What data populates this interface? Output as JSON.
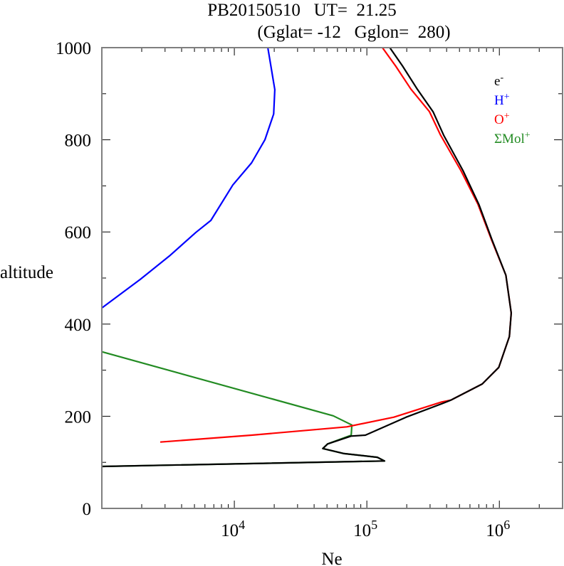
{
  "chart_data": {
    "type": "line",
    "title_line1": "PB20150510   UT=  21.25",
    "title_line2": "(Gglat= -12   Gglon=  280)",
    "xlabel": "Ne",
    "ylabel": "altitude",
    "xscale": "log",
    "xlim": [
      1000,
      3000000
    ],
    "ylim": [
      0,
      1000
    ],
    "grid": false,
    "legend_placement": "top-right",
    "x_tick_labels": [
      {
        "value": 10000,
        "base": "10",
        "exp": "4"
      },
      {
        "value": 100000,
        "base": "10",
        "exp": "5"
      },
      {
        "value": 1000000,
        "base": "10",
        "exp": "6"
      }
    ],
    "y_ticks": [
      0,
      200,
      400,
      600,
      800,
      1000
    ],
    "y_tick_labels": [
      "0",
      "200",
      "400",
      "600",
      "800",
      "1000"
    ],
    "series": [
      {
        "name": "e-",
        "label_base": "e",
        "label_sup": "-",
        "color": "#000000",
        "points": [
          [
            149000,
            1000
          ],
          [
            186000,
            960
          ],
          [
            240000,
            910
          ],
          [
            316000,
            861
          ],
          [
            380000,
            810
          ],
          [
            532000,
            733
          ],
          [
            700000,
            660
          ],
          [
            880000,
            583
          ],
          [
            1120000,
            506
          ],
          [
            1230000,
            424
          ],
          [
            1190000,
            373
          ],
          [
            990000,
            306
          ],
          [
            743000,
            270
          ],
          [
            431000,
            235
          ],
          [
            367000,
            227
          ],
          [
            198000,
            198
          ],
          [
            97500,
            159
          ],
          [
            76000,
            157
          ],
          [
            50600,
            140
          ],
          [
            46500,
            130
          ],
          [
            67300,
            119
          ],
          [
            120000,
            111
          ],
          [
            136000,
            103
          ],
          [
            1000,
            91
          ]
        ]
      },
      {
        "name": "H+",
        "label_base": "H",
        "label_sup": "+",
        "color": "#0000ff",
        "points": [
          [
            17900,
            1000
          ],
          [
            20200,
            909
          ],
          [
            19800,
            856
          ],
          [
            17000,
            800
          ],
          [
            13500,
            750
          ],
          [
            9750,
            702
          ],
          [
            6650,
            625
          ],
          [
            5130,
            599
          ],
          [
            3240,
            548
          ],
          [
            1950,
            497
          ],
          [
            1000,
            435
          ]
        ]
      },
      {
        "name": "O+",
        "label_base": "O",
        "label_sup": "+",
        "color": "#ff0000",
        "points": [
          [
            131000,
            1000
          ],
          [
            165000,
            960
          ],
          [
            215000,
            910
          ],
          [
            297000,
            861
          ],
          [
            360000,
            810
          ],
          [
            513000,
            733
          ],
          [
            690000,
            660
          ],
          [
            873000,
            583
          ],
          [
            1120000,
            506
          ],
          [
            1230000,
            424
          ],
          [
            1190000,
            373
          ],
          [
            990000,
            306
          ],
          [
            743000,
            270
          ],
          [
            431000,
            235
          ],
          [
            367000,
            231
          ],
          [
            160000,
            198
          ],
          [
            70600,
            177
          ],
          [
            13500,
            159
          ],
          [
            2760,
            144
          ]
        ]
      },
      {
        "name": "ΣMol+",
        "label_base": "ΣMol",
        "label_sup": "+",
        "color": "#228b22",
        "points": [
          [
            1000,
            340
          ],
          [
            55800,
            201
          ],
          [
            77100,
            181
          ],
          [
            76200,
            159
          ],
          [
            55200,
            144
          ],
          [
            50600,
            140
          ],
          [
            46500,
            130
          ],
          [
            67300,
            119
          ],
          [
            120000,
            111
          ],
          [
            136000,
            103
          ],
          [
            1000,
            91
          ]
        ]
      }
    ]
  }
}
